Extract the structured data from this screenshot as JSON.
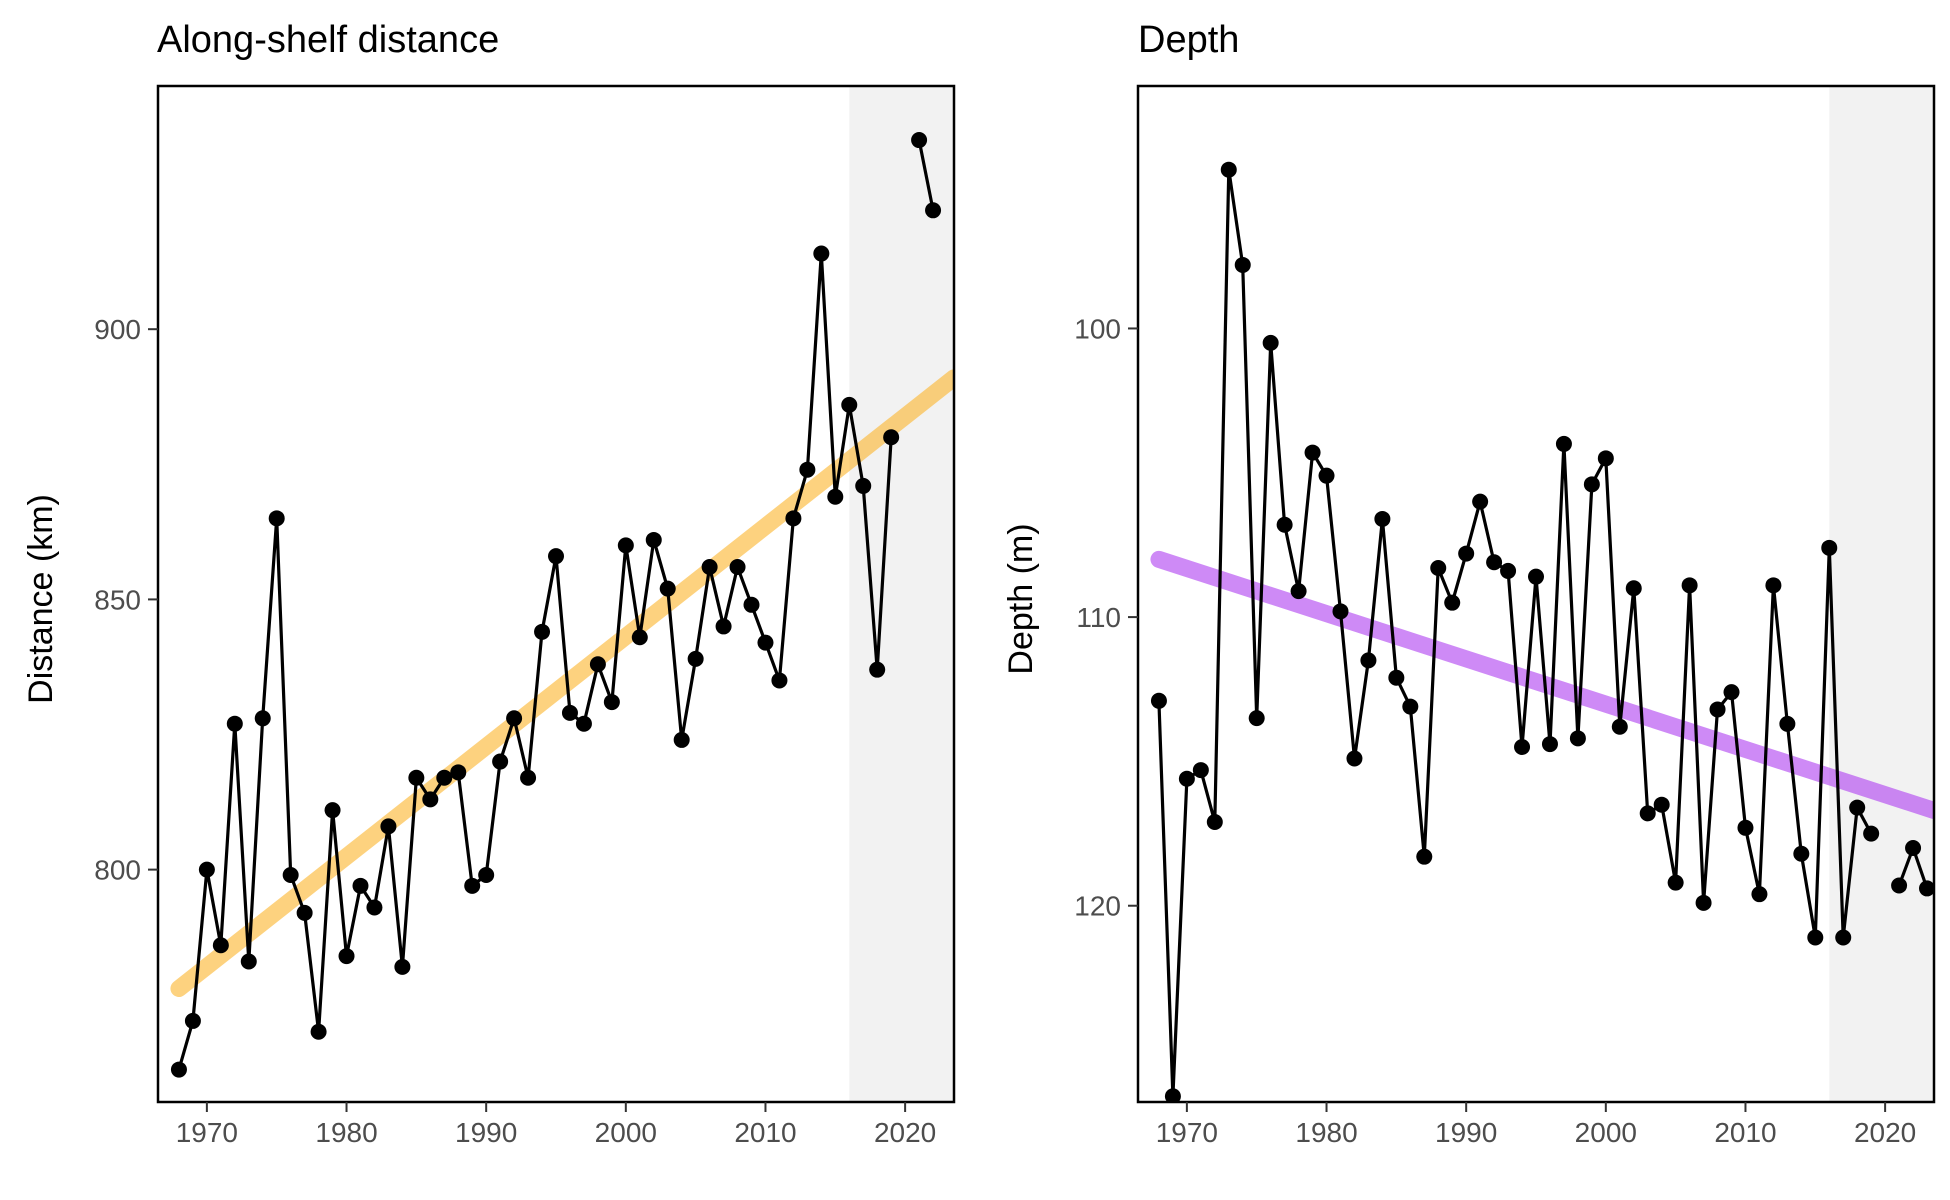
{
  "colors": {
    "shade": "#f2f2f2",
    "series": "#000000",
    "trend_distance": "#fbb731",
    "trend_depth": "#b042f0"
  },
  "chart_data": [
    {
      "type": "line",
      "title": "Along-shelf distance",
      "xlabel": "",
      "ylabel": "Distance (km)",
      "xlim": [
        1966.5,
        2023.5
      ],
      "ylim": [
        757,
        945
      ],
      "x_ticks": [
        1970,
        1980,
        1990,
        2000,
        2010,
        2020
      ],
      "y_ticks": [
        800,
        850,
        900
      ],
      "y_reversed": false,
      "shaded_x_range": [
        2016,
        2023.5
      ],
      "trend": {
        "x": [
          1968,
          2023.5
        ],
        "y": [
          778,
          891
        ],
        "color": "#fbb731"
      },
      "series": [
        {
          "x": [
            1968,
            1969,
            1970,
            1971,
            1972,
            1973,
            1974,
            1975,
            1976,
            1977,
            1978,
            1979,
            1980,
            1981,
            1982,
            1983,
            1984,
            1985,
            1986,
            1987,
            1988,
            1989,
            1990,
            1991,
            1992,
            1993,
            1994,
            1995,
            1996,
            1997,
            1998,
            1999,
            2000,
            2001,
            2002,
            2003,
            2004,
            2005,
            2006,
            2007,
            2008,
            2009,
            2010,
            2011,
            2012,
            2013,
            2014,
            2015,
            2016,
            2017,
            2018,
            2019,
            2020,
            2021,
            2022
          ],
          "y": [
            763,
            772,
            800,
            786,
            827,
            783,
            828,
            865,
            799,
            792,
            770,
            811,
            784,
            797,
            793,
            808,
            782,
            817,
            813,
            817,
            818,
            797,
            799,
            820,
            828,
            817,
            844,
            858,
            829,
            827,
            838,
            831,
            860,
            843,
            861,
            852,
            824,
            839,
            856,
            845,
            856,
            849,
            842,
            835,
            865,
            874,
            914,
            869,
            886,
            871,
            837,
            880,
            null,
            935,
            922
          ]
        }
      ]
    },
    {
      "type": "line",
      "title": "Depth",
      "xlabel": "",
      "ylabel": "Depth (m)",
      "xlim": [
        1966.5,
        2023.5
      ],
      "ylim": [
        126.8,
        91.6
      ],
      "x_ticks": [
        1970,
        1980,
        1990,
        2000,
        2010,
        2020
      ],
      "y_ticks": [
        100,
        110,
        120
      ],
      "y_reversed": true,
      "shaded_x_range": [
        2016,
        2023.5
      ],
      "trend": {
        "x": [
          1968,
          2023.5
        ],
        "y": [
          108,
          116.7
        ],
        "color": "#b042f0"
      },
      "series": [
        {
          "x": [
            1968,
            1969,
            1970,
            1971,
            1972,
            1973,
            1974,
            1975,
            1976,
            1977,
            1978,
            1979,
            1980,
            1981,
            1982,
            1983,
            1984,
            1985,
            1986,
            1987,
            1988,
            1989,
            1990,
            1991,
            1992,
            1993,
            1994,
            1995,
            1996,
            1997,
            1998,
            1999,
            2000,
            2001,
            2002,
            2003,
            2004,
            2005,
            2006,
            2007,
            2008,
            2009,
            2010,
            2011,
            2012,
            2013,
            2014,
            2015,
            2016,
            2017,
            2018,
            2019,
            2020,
            2021,
            2022,
            2023
          ],
          "y": [
            112.9,
            126.6,
            115.6,
            115.3,
            117.1,
            94.5,
            97.8,
            113.5,
            100.5,
            106.8,
            109.1,
            104.3,
            105.1,
            109.8,
            114.9,
            111.5,
            106.6,
            112.1,
            113.1,
            118.3,
            108.3,
            109.5,
            107.8,
            106.0,
            108.1,
            108.4,
            114.5,
            108.6,
            114.4,
            104.0,
            114.2,
            105.4,
            104.5,
            113.8,
            109.0,
            116.8,
            116.5,
            119.2,
            108.9,
            119.9,
            113.2,
            112.6,
            117.3,
            119.6,
            108.9,
            113.7,
            118.2,
            121.1,
            107.6,
            121.1,
            116.6,
            117.5,
            null,
            119.3,
            118.0,
            119.4
          ]
        }
      ]
    }
  ]
}
